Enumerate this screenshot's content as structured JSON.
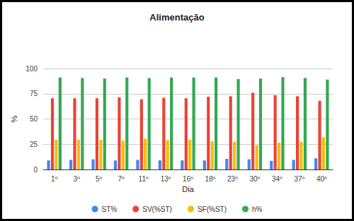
{
  "chart_data": {
    "type": "bar",
    "title": "Alimentação",
    "x_label": "Dia",
    "y_label": "%",
    "categories": [
      "1º",
      "3º",
      "5º",
      "7º",
      "11º",
      "13º",
      "16º",
      "18º",
      "23º",
      "30º",
      "34º",
      "37º",
      "40º"
    ],
    "series": [
      {
        "name": "ST%",
        "color": "#4285f4",
        "values": [
          9,
          9.5,
          10,
          9,
          9.5,
          9,
          9,
          9,
          10.5,
          10,
          8.5,
          9.5,
          11
        ]
      },
      {
        "name": "SV(%ST)",
        "color": "#ea4335",
        "values": [
          70.5,
          70.5,
          70.5,
          71.5,
          69.5,
          71,
          70.5,
          72,
          72.5,
          76,
          73.5,
          72.5,
          68
        ]
      },
      {
        "name": "SF(%ST)",
        "color": "#fbbc04",
        "values": [
          29.5,
          29.5,
          29.5,
          28.5,
          30.5,
          29,
          29.5,
          28,
          27.5,
          24,
          26.5,
          27.5,
          32
        ]
      },
      {
        "name": "h%",
        "color": "#34a853",
        "values": [
          91,
          90.5,
          90,
          91,
          90.5,
          91,
          91,
          91,
          89.5,
          90,
          91.5,
          90.5,
          89
        ]
      }
    ],
    "ylim": [
      0,
      100
    ],
    "yticks": [
      0,
      25,
      50,
      75,
      100
    ],
    "grid": true,
    "legend": "bottom"
  }
}
